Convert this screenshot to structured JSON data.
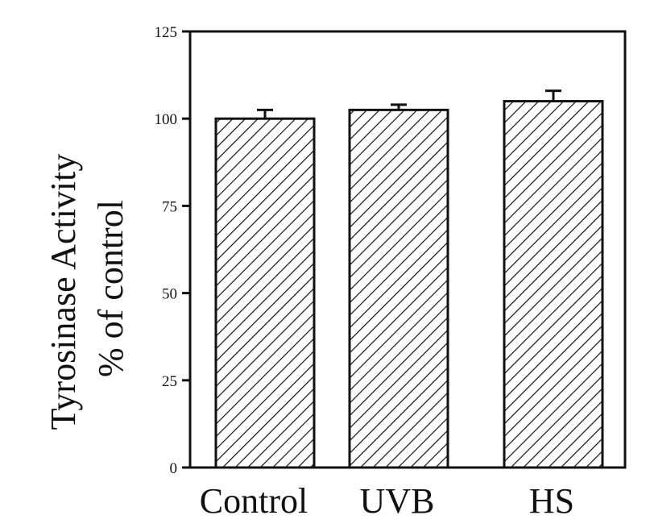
{
  "chart_data": {
    "type": "bar",
    "categories": [
      "Control",
      "UVB",
      "HS"
    ],
    "values": [
      100,
      102.5,
      105
    ],
    "errors": [
      2.5,
      1.5,
      3
    ],
    "ylabel_line1": "Tyrosinase Activity",
    "ylabel_line2": "% of control",
    "xlabel": "",
    "ylim": [
      0,
      125
    ],
    "yticks": [
      0,
      25,
      50,
      75,
      100,
      125
    ],
    "bar_fill": "hatched",
    "colors": {
      "ink": "#111111",
      "background": "#ffffff"
    }
  }
}
